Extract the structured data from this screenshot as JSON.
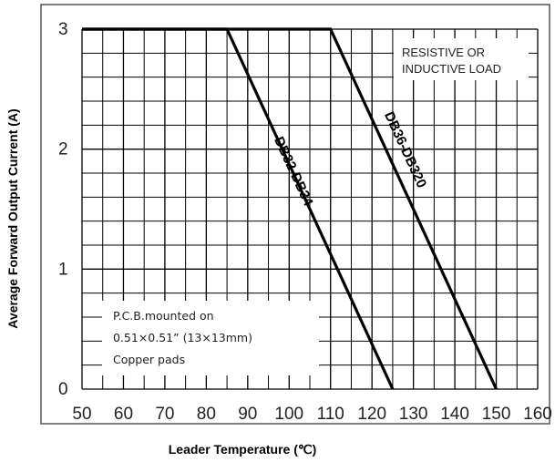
{
  "chart_data": {
    "type": "line",
    "xlabel": "Leader Temperature (℃)",
    "ylabel": "Average Forward Output Current (A)",
    "xlim": [
      50,
      160
    ],
    "ylim": [
      0,
      3
    ],
    "x_ticks": [
      50,
      60,
      70,
      80,
      90,
      100,
      110,
      120,
      130,
      140,
      150,
      160
    ],
    "y_ticks": [
      0,
      1,
      2,
      3
    ],
    "grid": true,
    "series": [
      {
        "name": "DB32-DB34",
        "x": [
          50,
          85,
          125
        ],
        "y": [
          3,
          3,
          0
        ]
      },
      {
        "name": "DB36-DB320",
        "x": [
          50,
          110,
          150
        ],
        "y": [
          3,
          3,
          0
        ]
      }
    ],
    "annotations": {
      "load_line1": "RESISTIVE OR",
      "load_line2": "INDUCTIVE LOAD",
      "pcb_line1": "P.C.B.mounted on",
      "pcb_line2": "0.51×0.51” (13×13mm)",
      "pcb_line3": "Copper pads"
    }
  }
}
